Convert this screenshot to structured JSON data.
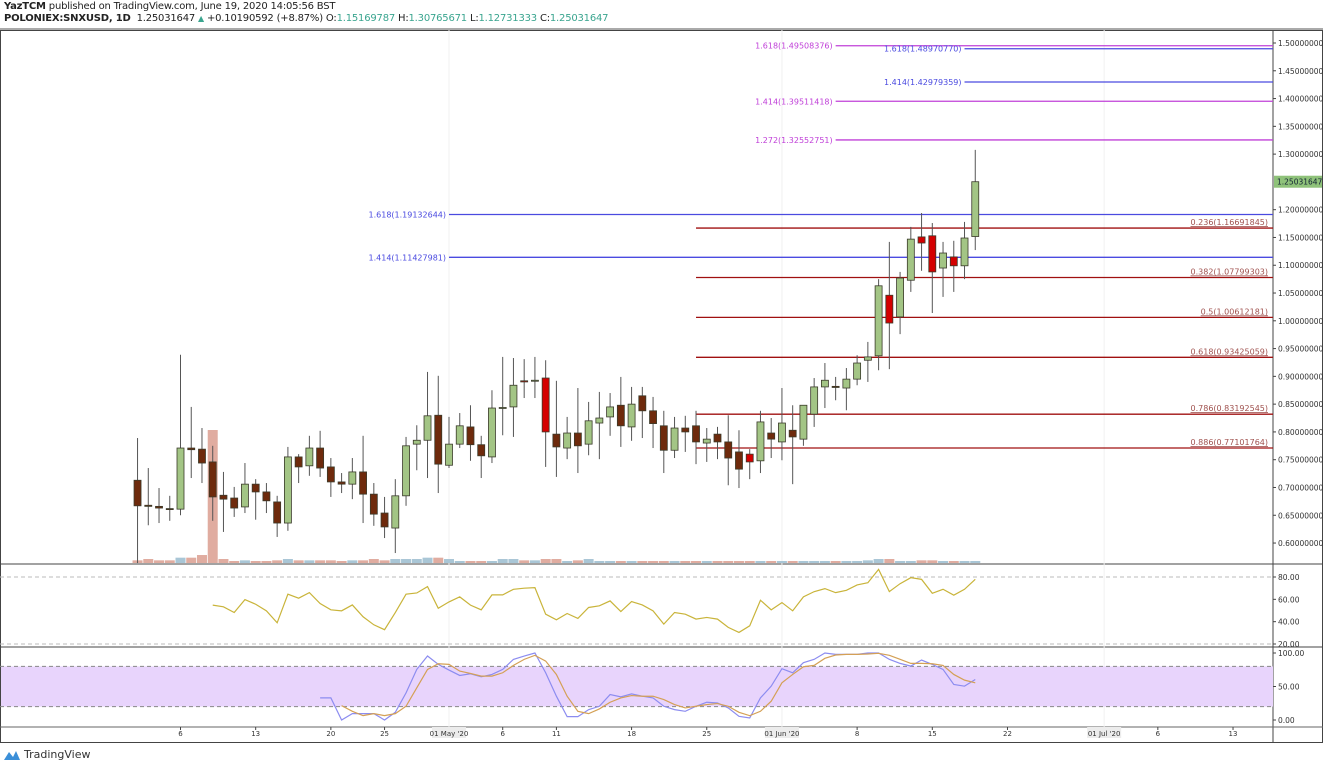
{
  "header": {
    "author": "YazTCM",
    "published_text": "published on TradingView.com, June 19, 2020 14:05:56 BST",
    "symbol": "POLONIEX:SNXUSD, 1D",
    "last_price": "1.25031647",
    "change": "+0.10190592 (+8.87%)",
    "o_label": "O:",
    "o_value": "1.15169787",
    "h_label": "H:",
    "h_value": "1.30765671",
    "l_label": "L:",
    "l_value": "1.12731333",
    "c_label": "C:",
    "c_value": "1.25031647"
  },
  "colors": {
    "up": "#a3c585",
    "down": "#6e2a0c",
    "down_strong": "#d40000",
    "rsi": "#c9b43a",
    "stoch_k": "#8c8cf0",
    "stoch_d": "#d4a055",
    "stoch_band": "#e8d4fc",
    "last_price_bg": "#8fc27a",
    "extension": "#c040d8",
    "extension_alt": "#4a4ae0",
    "retracement": "#a01010"
  },
  "logo": {
    "text": "TradingView"
  },
  "price_axis": {
    "ticks": [
      "1.50000000",
      "1.45000000",
      "1.40000000",
      "1.35000000",
      "1.30000000",
      "1.20000000",
      "1.15000000",
      "1.10000000",
      "1.05000000",
      "1.00000000",
      "0.95000000",
      "0.90000000",
      "0.85000000",
      "0.80000000",
      "0.75000000",
      "0.70000000",
      "0.65000000",
      "0.60000000"
    ],
    "last_price_label": "1.25031647"
  },
  "rsi_axis": {
    "ticks": [
      "80.00",
      "60.00",
      "40.00",
      "20.00"
    ]
  },
  "stoch_axis": {
    "ticks": [
      "100.00",
      "50.00",
      "0.00"
    ]
  },
  "time_axis": [
    {
      "label": "6",
      "date": "2020-04-06"
    },
    {
      "label": "13",
      "date": "2020-04-13"
    },
    {
      "label": "20",
      "date": "2020-04-20"
    },
    {
      "label": "25",
      "date": "2020-04-25"
    },
    {
      "label": "01 May '20",
      "date": "2020-05-01",
      "major": true
    },
    {
      "label": "6",
      "date": "2020-05-06"
    },
    {
      "label": "11",
      "date": "2020-05-11"
    },
    {
      "label": "18",
      "date": "2020-05-18"
    },
    {
      "label": "25",
      "date": "2020-05-25"
    },
    {
      "label": "01 Jun '20",
      "date": "2020-06-01",
      "major": true
    },
    {
      "label": "8",
      "date": "2020-06-08"
    },
    {
      "label": "15",
      "date": "2020-06-15"
    },
    {
      "label": "22",
      "date": "2020-06-22"
    },
    {
      "label": "01 Jul '20",
      "date": "2020-07-01",
      "major": true
    },
    {
      "label": "6",
      "date": "2020-07-06"
    },
    {
      "label": "13",
      "date": "2020-07-13"
    }
  ],
  "fib_levels": [
    {
      "label": "1.618(1.49508376)",
      "price": 1.49508376,
      "kind": "extension",
      "start": "2020-06-06"
    },
    {
      "label": "1.414(1.39511418)",
      "price": 1.39511418,
      "kind": "extension",
      "start": "2020-06-06"
    },
    {
      "label": "1.272(1.32552751)",
      "price": 1.32552751,
      "kind": "extension",
      "start": "2020-06-06"
    },
    {
      "label": "1.618(1.48970770)",
      "price": 1.4897077,
      "kind": "extension_alt",
      "start": "2020-06-18"
    },
    {
      "label": "1.414(1.42979359)",
      "price": 1.42979359,
      "kind": "extension_alt",
      "start": "2020-06-18"
    },
    {
      "label": "1.618(1.19132644)",
      "price": 1.19132644,
      "kind": "extension_alt",
      "start": "2020-05-01"
    },
    {
      "label": "1.414(1.11427981)",
      "price": 1.11427981,
      "kind": "extension_alt",
      "start": "2020-05-01"
    },
    {
      "label": "0.236(1.16691845)",
      "price": 1.16691845,
      "kind": "retracement",
      "start": "2020-05-24"
    },
    {
      "label": "0.382(1.07799303)",
      "price": 1.07799303,
      "kind": "retracement",
      "start": "2020-05-24"
    },
    {
      "label": "0.5(1.00612181)",
      "price": 1.00612181,
      "kind": "retracement",
      "start": "2020-05-24"
    },
    {
      "label": "0.618(0.93425059)",
      "price": 0.93425059,
      "kind": "retracement",
      "start": "2020-05-24"
    },
    {
      "label": "0.786(0.83192545)",
      "price": 0.83192545,
      "kind": "retracement",
      "start": "2020-05-24"
    },
    {
      "label": "0.886(0.77101764)",
      "price": 0.77101764,
      "kind": "retracement",
      "start": "2020-05-24"
    }
  ],
  "chart_data": {
    "type": "candlestick",
    "columns": [
      "date",
      "open",
      "high",
      "low",
      "close"
    ],
    "ylim": [
      0.57,
      1.52
    ],
    "candles": [
      [
        "2020-04-02",
        0.713,
        0.789,
        0.564,
        0.667
      ],
      [
        "2020-04-03",
        0.668,
        0.735,
        0.632,
        0.666
      ],
      [
        "2020-04-04",
        0.666,
        0.699,
        0.636,
        0.663
      ],
      [
        "2020-04-05",
        0.662,
        0.685,
        0.64,
        0.661
      ],
      [
        "2020-04-06",
        0.661,
        0.939,
        0.65,
        0.771
      ],
      [
        "2020-04-07",
        0.771,
        0.845,
        0.717,
        0.768
      ],
      [
        "2020-04-08",
        0.769,
        0.807,
        0.708,
        0.744
      ],
      [
        "2020-04-09",
        0.746,
        0.775,
        0.64,
        0.683
      ],
      [
        "2020-04-10",
        0.686,
        0.728,
        0.62,
        0.679
      ],
      [
        "2020-04-11",
        0.681,
        0.701,
        0.647,
        0.663
      ],
      [
        "2020-04-12",
        0.665,
        0.744,
        0.654,
        0.706
      ],
      [
        "2020-04-13",
        0.706,
        0.715,
        0.642,
        0.692
      ],
      [
        "2020-04-14",
        0.692,
        0.708,
        0.654,
        0.676
      ],
      [
        "2020-04-15",
        0.674,
        0.685,
        0.611,
        0.636
      ],
      [
        "2020-04-16",
        0.636,
        0.773,
        0.622,
        0.755
      ],
      [
        "2020-04-17",
        0.755,
        0.76,
        0.708,
        0.737
      ],
      [
        "2020-04-18",
        0.739,
        0.793,
        0.721,
        0.771
      ],
      [
        "2020-04-19",
        0.771,
        0.802,
        0.719,
        0.735
      ],
      [
        "2020-04-20",
        0.737,
        0.753,
        0.683,
        0.71
      ],
      [
        "2020-04-21",
        0.71,
        0.726,
        0.69,
        0.706
      ],
      [
        "2020-04-22",
        0.706,
        0.753,
        0.679,
        0.728
      ],
      [
        "2020-04-23",
        0.728,
        0.793,
        0.636,
        0.688
      ],
      [
        "2020-04-24",
        0.688,
        0.708,
        0.631,
        0.652
      ],
      [
        "2020-04-25",
        0.654,
        0.683,
        0.609,
        0.629
      ],
      [
        "2020-04-26",
        0.627,
        0.715,
        0.582,
        0.685
      ],
      [
        "2020-04-27",
        0.685,
        0.791,
        0.667,
        0.775
      ],
      [
        "2020-04-28",
        0.778,
        0.812,
        0.731,
        0.785
      ],
      [
        "2020-04-29",
        0.785,
        0.908,
        0.717,
        0.829
      ],
      [
        "2020-04-30",
        0.83,
        0.901,
        0.69,
        0.742
      ],
      [
        "2020-05-01",
        0.74,
        0.827,
        0.735,
        0.778
      ],
      [
        "2020-05-02",
        0.778,
        0.834,
        0.771,
        0.811
      ],
      [
        "2020-05-03",
        0.809,
        0.848,
        0.748,
        0.777
      ],
      [
        "2020-05-04",
        0.777,
        0.793,
        0.717,
        0.757
      ],
      [
        "2020-05-05",
        0.755,
        0.875,
        0.744,
        0.843
      ],
      [
        "2020-05-06",
        0.843,
        0.935,
        0.794,
        0.844
      ],
      [
        "2020-05-07",
        0.845,
        0.933,
        0.791,
        0.884
      ],
      [
        "2020-05-08",
        0.892,
        0.931,
        0.861,
        0.89
      ],
      [
        "2020-05-09",
        0.893,
        0.935,
        0.861,
        0.893
      ],
      [
        "2020-05-10",
        0.897,
        0.929,
        0.737,
        0.8
      ],
      [
        "2020-05-11",
        0.796,
        0.892,
        0.719,
        0.773
      ],
      [
        "2020-05-12",
        0.771,
        0.827,
        0.751,
        0.798
      ],
      [
        "2020-05-13",
        0.798,
        0.879,
        0.726,
        0.775
      ],
      [
        "2020-05-14",
        0.778,
        0.854,
        0.758,
        0.82
      ],
      [
        "2020-05-15",
        0.816,
        0.872,
        0.751,
        0.825
      ],
      [
        "2020-05-16",
        0.827,
        0.87,
        0.793,
        0.845
      ],
      [
        "2020-05-17",
        0.848,
        0.899,
        0.773,
        0.811
      ],
      [
        "2020-05-18",
        0.809,
        0.881,
        0.784,
        0.85
      ],
      [
        "2020-05-19",
        0.865,
        0.881,
        0.789,
        0.838
      ],
      [
        "2020-05-20",
        0.838,
        0.863,
        0.771,
        0.815
      ],
      [
        "2020-05-21",
        0.811,
        0.838,
        0.726,
        0.767
      ],
      [
        "2020-05-22",
        0.767,
        0.827,
        0.753,
        0.807
      ],
      [
        "2020-05-23",
        0.807,
        0.829,
        0.764,
        0.8
      ],
      [
        "2020-05-24",
        0.811,
        0.838,
        0.742,
        0.782
      ],
      [
        "2020-05-25",
        0.78,
        0.807,
        0.746,
        0.787
      ],
      [
        "2020-05-26",
        0.796,
        0.809,
        0.751,
        0.782
      ],
      [
        "2020-05-27",
        0.782,
        0.83,
        0.704,
        0.753
      ],
      [
        "2020-05-28",
        0.764,
        0.803,
        0.699,
        0.733
      ],
      [
        "2020-05-29",
        0.76,
        0.769,
        0.715,
        0.746
      ],
      [
        "2020-05-30",
        0.748,
        0.838,
        0.726,
        0.818
      ],
      [
        "2020-05-31",
        0.798,
        0.825,
        0.753,
        0.787
      ],
      [
        "2020-06-01",
        0.782,
        0.879,
        0.749,
        0.816
      ],
      [
        "2020-06-02",
        0.803,
        0.848,
        0.706,
        0.791
      ],
      [
        "2020-06-03",
        0.787,
        0.848,
        0.775,
        0.848
      ],
      [
        "2020-06-04",
        0.832,
        0.897,
        0.809,
        0.881
      ],
      [
        "2020-06-05",
        0.881,
        0.924,
        0.843,
        0.893
      ],
      [
        "2020-06-06",
        0.882,
        0.899,
        0.857,
        0.88
      ],
      [
        "2020-06-07",
        0.879,
        0.915,
        0.839,
        0.895
      ],
      [
        "2020-06-08",
        0.895,
        0.938,
        0.884,
        0.924
      ],
      [
        "2020-06-09",
        0.929,
        0.962,
        0.89,
        0.935
      ],
      [
        "2020-06-10",
        0.937,
        1.075,
        0.911,
        1.063
      ],
      [
        "2020-06-11",
        1.046,
        1.142,
        0.913,
        0.996
      ],
      [
        "2020-06-12",
        1.007,
        1.088,
        0.976,
        1.077
      ],
      [
        "2020-06-13",
        1.073,
        1.169,
        1.052,
        1.147
      ],
      [
        "2020-06-14",
        1.151,
        1.194,
        1.09,
        1.14
      ],
      [
        "2020-06-15",
        1.153,
        1.176,
        1.014,
        1.088
      ],
      [
        "2020-06-16",
        1.095,
        1.142,
        1.043,
        1.122
      ],
      [
        "2020-06-17",
        1.115,
        1.144,
        1.052,
        1.099
      ],
      [
        "2020-06-18",
        1.099,
        1.178,
        1.075,
        1.149
      ],
      [
        "2020-06-19",
        1.15169787,
        1.30765671,
        1.12731333,
        1.25031647
      ]
    ],
    "volume_relative": [
      0.02,
      0.03,
      0.02,
      0.02,
      0.04,
      0.04,
      0.06,
      1.0,
      0.03,
      0.01,
      0.02,
      0.01,
      0.01,
      0.02,
      0.03,
      0.02,
      0.02,
      0.02,
      0.02,
      0.01,
      0.02,
      0.02,
      0.03,
      0.02,
      0.03,
      0.03,
      0.03,
      0.04,
      0.04,
      0.03,
      0.01,
      0.01,
      0.01,
      0.01,
      0.03,
      0.03,
      0.02,
      0.02,
      0.03,
      0.03,
      0.01,
      0.02,
      0.03,
      0.01,
      0.01,
      0.01,
      0.01,
      0.01,
      0.01,
      0.01,
      0.01,
      0.01,
      0.01,
      0.01,
      0.01,
      0.01,
      0.01,
      0.01,
      0.01,
      0.01,
      0.01,
      0.01,
      0.01,
      0.01,
      0.01,
      0.01,
      0.01,
      0.01,
      0.02,
      0.03,
      0.03,
      0.01,
      0.01,
      0.02,
      0.02,
      0.01,
      0.01,
      0.01,
      0.01
    ],
    "rsi": {
      "levels": [
        80,
        20
      ],
      "ylim": [
        20,
        80
      ],
      "values": [
        null,
        null,
        null,
        null,
        null,
        null,
        null,
        54.8,
        53.3,
        48.2,
        59.8,
        55.6,
        49.7,
        39,
        64.6,
        61,
        66,
        56.2,
        50.6,
        49.7,
        55,
        44.4,
        37.2,
        32.8,
        48.2,
        64.6,
        65.7,
        71.4,
        52,
        57.7,
        62.2,
        54.8,
        50.6,
        64,
        64,
        69,
        70,
        70.5,
        46.7,
        41.7,
        47.3,
        42.9,
        52.7,
        54.2,
        58.6,
        49.1,
        58,
        55,
        49.7,
        37.8,
        48.2,
        46.7,
        42.3,
        43.8,
        42.3,
        34.9,
        30.4,
        36.3,
        59.2,
        50.6,
        57.1,
        49.7,
        62.2,
        66.9,
        69.6,
        66,
        68.1,
        72.9,
        74.9,
        86.8,
        66.9,
        74,
        79.4,
        77.9,
        65.4,
        69,
        63.7,
        69,
        77.9
      ]
    },
    "stoch": {
      "levels": [
        80,
        20
      ],
      "ylim": [
        0,
        100
      ],
      "k": [
        null,
        null,
        null,
        null,
        null,
        null,
        null,
        null,
        null,
        null,
        null,
        null,
        null,
        null,
        null,
        null,
        null,
        33,
        33,
        0,
        9.5,
        9.5,
        9.5,
        0,
        11.5,
        40.5,
        75.5,
        95.5,
        83,
        74.5,
        66.5,
        69,
        64.5,
        68,
        75.5,
        90.5,
        95.5,
        100,
        70.5,
        35.5,
        5,
        5,
        15.5,
        20.5,
        38,
        34.5,
        39,
        35.5,
        33,
        20.5,
        15.5,
        13,
        20.5,
        26.5,
        25.5,
        18,
        5.5,
        3,
        33,
        50.5,
        76.5,
        70.5,
        85.5,
        90.5,
        100,
        98,
        98,
        98,
        100,
        100,
        90.5,
        84.5,
        80.5,
        89.5,
        83,
        75.5,
        53,
        50.5,
        60.5
      ],
      "d": [
        null,
        null,
        null,
        null,
        null,
        null,
        null,
        null,
        null,
        null,
        null,
        null,
        null,
        null,
        null,
        null,
        null,
        null,
        null,
        21.5,
        13,
        6.5,
        9.5,
        6.5,
        9.5,
        20.5,
        48,
        75.5,
        84,
        83,
        73,
        69.5,
        65.5,
        65.5,
        70.5,
        81.5,
        90.5,
        96.5,
        88,
        68,
        35.5,
        13,
        9.5,
        16.5,
        26.5,
        33,
        36.5,
        35.5,
        35.5,
        30.5,
        23,
        18,
        20.5,
        23,
        24.5,
        20.5,
        11.5,
        6.5,
        13,
        28,
        55.5,
        68,
        79.5,
        81.5,
        92,
        97,
        98,
        98,
        98.5,
        99.5,
        96.5,
        90.5,
        84.5,
        84.5,
        84,
        81.5,
        68,
        59.5,
        55.5
      ]
    }
  }
}
